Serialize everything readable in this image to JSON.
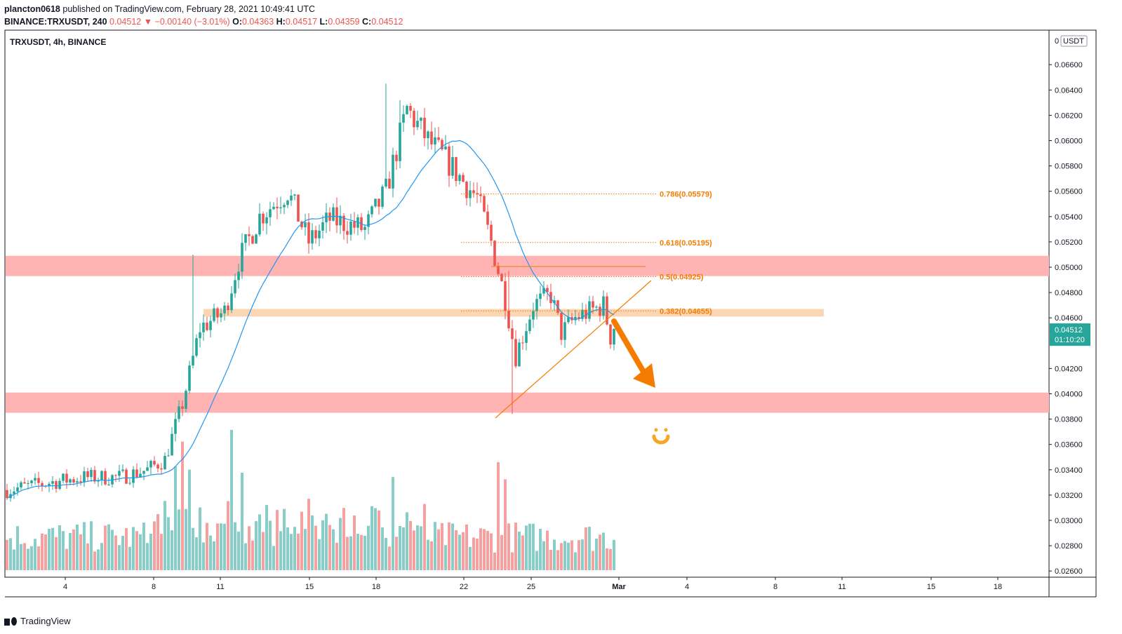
{
  "header": {
    "line1_author": "plancton0618",
    "line1_rest": "published on TradingView.com, February 28, 2021 10:49:41 UTC",
    "symbol_full": "BINANCE:TRXUSDT, 240",
    "last": "0.04512",
    "change_arrow": "▼",
    "change": "−0.00140 (−3.01%)",
    "o_label": "O:",
    "o_val": "0.04363",
    "h_label": "H:",
    "h_val": "0.04517",
    "l_label": "L:",
    "l_val": "0.04359",
    "c_label": "C:",
    "c_val": "0.04512"
  },
  "chart_title": "TRXUSDT, 4h, BINANCE",
  "axis": {
    "currency_label": "USDT",
    "price_tag": "0.04512",
    "countdown": "01:10:20"
  },
  "footer": {
    "brand": "TradingView"
  },
  "colors": {
    "up": "#26a69a",
    "down": "#ef5350",
    "ma": "#2196f3",
    "fib": "#f57c00",
    "zone_red": "#ffb3b3",
    "zone_orange": "#fbd6b5",
    "arrow": "#f57c00",
    "tag_bg": "#26a69a"
  },
  "chart_data": {
    "type": "candlestick",
    "ylim": [
      0.0258,
      0.0684
    ],
    "yticks": [
      "0.06600",
      "0.06400",
      "0.06200",
      "0.06000",
      "0.05800",
      "0.05600",
      "0.05400",
      "0.05200",
      "0.05000",
      "0.04800",
      "0.04600",
      "0.04200",
      "0.04000",
      "0.03800",
      "0.03600",
      "0.03400",
      "0.03200",
      "0.03000",
      "0.02800",
      "0.02600"
    ],
    "xticks": [
      "4",
      "8",
      "11",
      "15",
      "18",
      "22",
      "25",
      "Mar",
      "4",
      "8",
      "11",
      "15",
      "18"
    ],
    "interval": "4h",
    "candle_count": 142,
    "moving_average": "blue line",
    "fib_levels": [
      {
        "label": "0.786(0.05579)",
        "value": 0.05579
      },
      {
        "label": "0.618(0.05195)",
        "value": 0.05195
      },
      {
        "label": "0.5(0.04925)",
        "value": 0.04925
      },
      {
        "label": "0.382(0.04655)",
        "value": 0.04655
      }
    ],
    "zones": [
      {
        "kind": "resistance",
        "from": 0.0493,
        "to": 0.0509
      },
      {
        "kind": "support-minor",
        "from": 0.0461,
        "to": 0.0467
      },
      {
        "kind": "support",
        "from": 0.0385,
        "to": 0.0401
      }
    ],
    "trendline": {
      "from": [
        0.038
      ],
      "to": [
        0.0488
      ]
    },
    "last_close": 0.04512
  }
}
